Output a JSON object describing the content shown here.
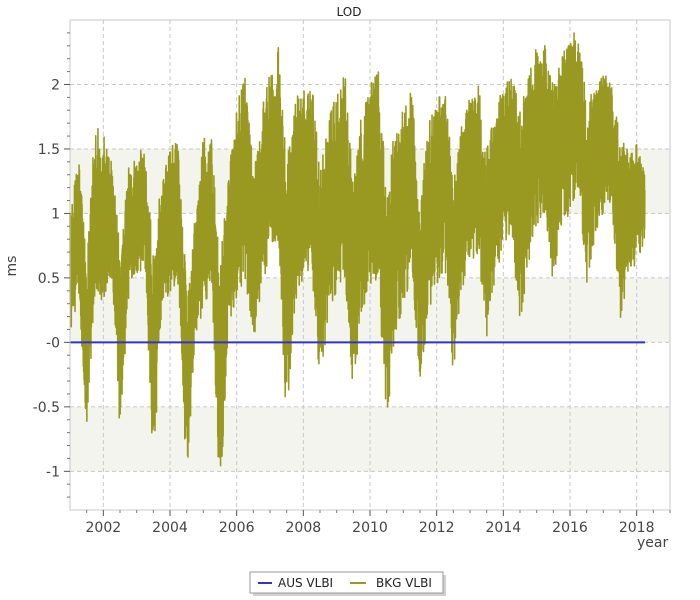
{
  "chart_data": {
    "type": "line",
    "title": "LOD",
    "xlabel": "year",
    "ylabel": "ms",
    "xlim": [
      2001.0,
      2019.0
    ],
    "ylim": [
      -1.3,
      2.5
    ],
    "x_ticks": [
      2002,
      2004,
      2006,
      2008,
      2010,
      2012,
      2014,
      2016,
      2018
    ],
    "y_ticks": [
      -1,
      -0.5,
      0,
      0.5,
      1,
      1.5,
      2
    ],
    "y_tick_labels": [
      "-1",
      "-0.5",
      "-0",
      "0.5",
      "1",
      "1.5",
      "2"
    ],
    "grid": true,
    "legend_position": "bottom",
    "series": [
      {
        "name": "AUS VLBI",
        "color": "#3333cc",
        "x": [
          2001.0,
          2018.25
        ],
        "y": [
          0.0,
          0.0
        ]
      },
      {
        "name": "BKG VLBI",
        "color": "#999922",
        "x": [
          2001.0,
          2001.25,
          2001.5,
          2001.75,
          2002.0,
          2002.25,
          2002.5,
          2002.75,
          2003.0,
          2003.25,
          2003.5,
          2003.75,
          2004.0,
          2004.25,
          2004.5,
          2004.75,
          2005.0,
          2005.25,
          2005.5,
          2005.75,
          2006.0,
          2006.25,
          2006.5,
          2006.75,
          2007.0,
          2007.25,
          2007.5,
          2007.75,
          2008.0,
          2008.25,
          2008.5,
          2008.75,
          2009.0,
          2009.25,
          2009.5,
          2009.75,
          2010.0,
          2010.25,
          2010.5,
          2010.75,
          2011.0,
          2011.25,
          2011.5,
          2011.75,
          2012.0,
          2012.25,
          2012.5,
          2012.75,
          2013.0,
          2013.25,
          2013.5,
          2013.75,
          2014.0,
          2014.25,
          2014.5,
          2014.75,
          2015.0,
          2015.25,
          2015.5,
          2015.75,
          2016.0,
          2016.25,
          2016.5,
          2016.75,
          2017.0,
          2017.25,
          2017.5,
          2017.75,
          2018.0,
          2018.25
        ],
        "y_low": [
          0.0,
          0.4,
          -0.7,
          0.4,
          0.3,
          0.5,
          -0.7,
          0.3,
          0.5,
          0.6,
          -1.0,
          0.2,
          0.4,
          0.4,
          -1.1,
          0.0,
          0.2,
          0.5,
          -1.3,
          0.1,
          0.3,
          0.4,
          0.0,
          0.4,
          0.6,
          0.8,
          -0.7,
          0.3,
          0.5,
          0.6,
          -0.4,
          0.2,
          0.4,
          0.5,
          -0.4,
          0.2,
          0.4,
          0.5,
          -0.7,
          0.0,
          0.3,
          0.5,
          -0.3,
          0.2,
          0.4,
          0.6,
          -0.3,
          0.4,
          0.6,
          0.7,
          0.0,
          0.5,
          0.7,
          0.8,
          0.1,
          0.6,
          0.9,
          1.0,
          0.4,
          0.9,
          1.0,
          1.2,
          0.4,
          0.8,
          1.0,
          1.1,
          0.1,
          0.5,
          0.6,
          0.8
        ],
        "y_high": [
          1.0,
          1.5,
          0.6,
          1.7,
          1.6,
          1.5,
          0.7,
          1.4,
          1.5,
          1.5,
          0.7,
          1.3,
          1.5,
          1.6,
          0.4,
          1.0,
          1.6,
          1.6,
          0.6,
          1.3,
          1.8,
          2.2,
          1.3,
          1.8,
          2.1,
          2.3,
          1.4,
          1.9,
          2.0,
          2.1,
          1.3,
          1.8,
          1.9,
          2.1,
          1.2,
          1.8,
          2.0,
          2.1,
          1.2,
          1.7,
          1.8,
          2.0,
          1.1,
          1.7,
          1.9,
          2.0,
          1.3,
          1.7,
          1.9,
          2.0,
          1.5,
          1.8,
          2.0,
          2.1,
          1.8,
          2.1,
          2.3,
          2.3,
          2.0,
          2.2,
          2.4,
          2.4,
          1.9,
          2.0,
          2.1,
          2.0,
          1.6,
          1.5,
          1.6,
          1.3
        ]
      }
    ]
  }
}
